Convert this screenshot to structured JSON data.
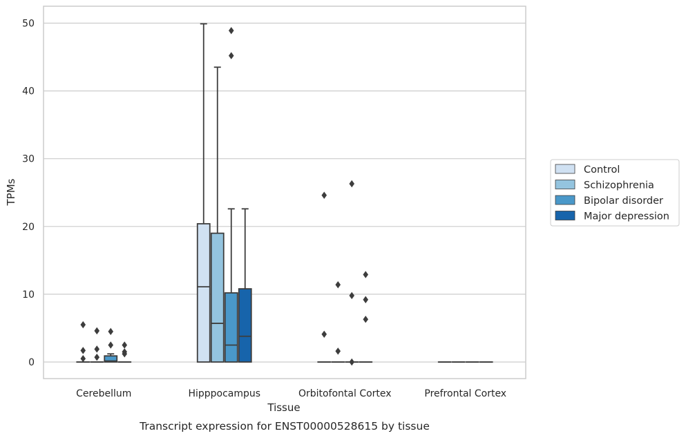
{
  "chart_data": {
    "type": "box",
    "caption": "Transcript expression for ENST00000528615 by tissue",
    "xlabel": "Tissue",
    "ylabel": "TPMs",
    "ylim": [
      -2.5,
      52.5
    ],
    "yticks": [
      0,
      10,
      20,
      30,
      40,
      50
    ],
    "grid": "horizontal",
    "legend_position": "right",
    "categories": [
      "Cerebellum",
      "Hipppocampus",
      "Orbitofontal Cortex",
      "Prefrontal Cortex"
    ],
    "series": [
      {
        "name": "Control",
        "color": "#d0e1f2",
        "boxes": [
          {
            "q1": 0,
            "median": 0,
            "q3": 0,
            "whislo": 0,
            "whishi": 0,
            "fliers": [
              5.5,
              1.7,
              0.5
            ]
          },
          {
            "q1": 0,
            "median": 11.1,
            "q3": 20.4,
            "whislo": 0,
            "whishi": 49.9,
            "fliers": []
          },
          {
            "q1": 0,
            "median": 0,
            "q3": 0,
            "whislo": 0,
            "whishi": 0,
            "fliers": [
              24.6,
              4.1
            ]
          },
          {
            "q1": 0,
            "median": 0,
            "q3": 0,
            "whislo": 0,
            "whishi": 0,
            "fliers": []
          }
        ]
      },
      {
        "name": "Schizophrenia",
        "color": "#94c4df",
        "boxes": [
          {
            "q1": 0,
            "median": 0,
            "q3": 0,
            "whislo": 0,
            "whishi": 0,
            "fliers": [
              4.6,
              1.9,
              0.7
            ]
          },
          {
            "q1": 0,
            "median": 5.7,
            "q3": 19.0,
            "whislo": 0,
            "whishi": 43.5,
            "fliers": []
          },
          {
            "q1": 0,
            "median": 0,
            "q3": 0,
            "whislo": 0,
            "whishi": 0,
            "fliers": [
              11.4,
              1.6
            ]
          },
          {
            "q1": 0,
            "median": 0,
            "q3": 0,
            "whislo": 0,
            "whishi": 0,
            "fliers": []
          }
        ]
      },
      {
        "name": "Bipolar disorder",
        "color": "#4a98c9",
        "boxes": [
          {
            "q1": 0,
            "median": 0.15,
            "q3": 0.9,
            "whislo": 0,
            "whishi": 1.2,
            "fliers": [
              4.5,
              2.5
            ]
          },
          {
            "q1": 0,
            "median": 2.5,
            "q3": 10.2,
            "whislo": 0,
            "whishi": 22.6,
            "fliers": [
              48.9,
              45.2
            ]
          },
          {
            "q1": 0,
            "median": 0,
            "q3": 0,
            "whislo": 0,
            "whishi": 0,
            "fliers": [
              26.3,
              9.8,
              0
            ]
          },
          {
            "q1": 0,
            "median": 0,
            "q3": 0,
            "whislo": 0,
            "whishi": 0,
            "fliers": []
          }
        ]
      },
      {
        "name": "Major depression",
        "color": "#1764ab",
        "boxes": [
          {
            "q1": 0,
            "median": 0,
            "q3": 0,
            "whislo": 0,
            "whishi": 0,
            "fliers": [
              2.5,
              1.5,
              1.2
            ]
          },
          {
            "q1": 0,
            "median": 3.8,
            "q3": 10.8,
            "whislo": 0,
            "whishi": 22.6,
            "fliers": []
          },
          {
            "q1": 0,
            "median": 0,
            "q3": 0,
            "whislo": 0,
            "whishi": 0,
            "fliers": [
              12.9,
              9.2,
              6.3
            ]
          },
          {
            "q1": 0,
            "median": 0,
            "q3": 0,
            "whislo": 0,
            "whishi": 0,
            "fliers": []
          }
        ]
      }
    ]
  }
}
